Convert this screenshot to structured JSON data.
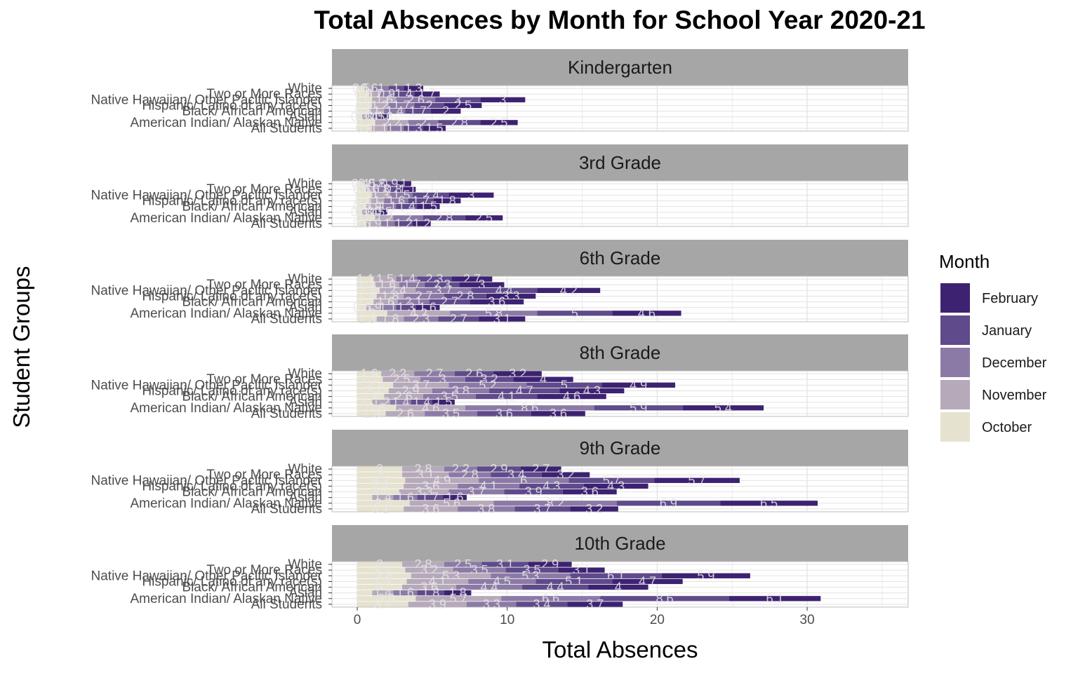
{
  "chart_data": {
    "type": "bar",
    "orientation": "horizontal",
    "stacked": true,
    "title": "Total Absences by Month for School Year 2020-21",
    "xlabel": "Total Absences",
    "ylabel": "Student Groups",
    "xlim": [
      0,
      35
    ],
    "x_ticks": [
      0,
      10,
      20,
      30
    ],
    "grid": true,
    "legend": {
      "title": "Month",
      "position": "right"
    },
    "categories": [
      "White",
      "Two or More Races",
      "Native Hawaiian/ Other Pacific Islander",
      "Hispanic/ Latino of any race(s)",
      "Black/ African American",
      "Asian",
      "American Indian/ Alaskan Native",
      "All Students"
    ],
    "series_order": [
      "October",
      "November",
      "December",
      "January",
      "February"
    ],
    "colors": {
      "February": "#3d2272",
      "January": "#5f4a8b",
      "December": "#8c7aa6",
      "November": "#b6a9ba",
      "October": "#e6e2d0"
    },
    "panels": [
      {
        "name": "Kindergarten",
        "values": [
          [
            0.5,
            0.6,
            1.0,
            1.0,
            1.3
          ],
          [
            0.8,
            0.7,
            0.9,
            1.4,
            1.7
          ],
          [
            1.0,
            1.6,
            2.6,
            3.0,
            3.0
          ],
          [
            0.9,
            1.2,
            1.7,
            2.0,
            2.5
          ],
          [
            0.8,
            1.0,
            1.4,
            1.7,
            2.0
          ],
          [
            0.3,
            0.3,
            0.4,
            0.5,
            0.6
          ],
          [
            1.2,
            2.2,
            2.0,
            2.8,
            2.5
          ],
          [
            0.9,
            1.1,
            1.1,
            1.3,
            1.5
          ]
        ]
      },
      {
        "name": "3rd Grade",
        "values": [
          [
            0.4,
            0.5,
            0.8,
            0.9,
            1.0
          ],
          [
            0.6,
            0.6,
            0.8,
            0.8,
            1.1
          ],
          [
            0.9,
            1.3,
            1.5,
            2.4,
            3.0
          ],
          [
            0.8,
            1.0,
            1.6,
            1.7,
            1.8
          ],
          [
            0.6,
            0.9,
            1.1,
            1.4,
            1.5
          ],
          [
            0.3,
            0.3,
            0.4,
            0.5,
            0.5
          ],
          [
            1.2,
            1.2,
            2.0,
            2.8,
            2.5
          ],
          [
            0.6,
            0.9,
            1.0,
            1.2,
            1.2
          ]
        ]
      },
      {
        "name": "6th Grade",
        "values": [
          [
            1.1,
            1.5,
            1.4,
            2.3,
            2.7
          ],
          [
            1.2,
            1.6,
            1.7,
            2.3,
            3.0
          ],
          [
            1.5,
            2.4,
            3.7,
            4.4,
            4.2
          ],
          [
            1.3,
            1.8,
            2.7,
            2.8,
            3.3
          ],
          [
            1.1,
            1.6,
            2.1,
            2.7,
            3.6
          ],
          [
            0.6,
            0.9,
            1.1,
            1.3,
            1.6
          ],
          [
            2.0,
            4.2,
            5.8,
            5.0,
            4.6
          ],
          [
            1.3,
            1.8,
            2.3,
            2.7,
            3.1
          ]
        ]
      },
      {
        "name": "8th Grade",
        "values": [
          [
            1.6,
            2.2,
            2.7,
            2.6,
            3.2
          ],
          [
            1.7,
            2.5,
            3.0,
            3.2,
            4.0
          ],
          [
            2.4,
            3.7,
            5.2,
            5.0,
            4.9
          ],
          [
            2.1,
            2.9,
            3.8,
            4.7,
            4.3
          ],
          [
            1.8,
            2.6,
            3.5,
            4.1,
            4.6
          ],
          [
            1.0,
            1.2,
            1.4,
            1.4,
            1.5
          ],
          [
            2.6,
            4.6,
            8.6,
            5.9,
            5.4
          ],
          [
            1.9,
            2.6,
            3.5,
            3.6,
            3.6
          ]
        ]
      },
      {
        "name": "9th Grade",
        "values": [
          [
            3.0,
            2.8,
            2.2,
            2.9,
            2.7
          ],
          [
            3.0,
            3.1,
            2.8,
            3.4,
            3.2
          ],
          [
            3.2,
            4.9,
            6.0,
            5.7,
            5.7
          ],
          [
            3.1,
            3.6,
            4.1,
            4.3,
            4.3
          ],
          [
            2.8,
            3.3,
            3.7,
            3.9,
            3.6
          ],
          [
            1.0,
            1.4,
            1.6,
            1.7,
            1.6
          ],
          [
            3.5,
            5.6,
            8.2,
            6.9,
            6.5
          ],
          [
            3.1,
            3.6,
            3.8,
            3.7,
            3.2
          ]
        ]
      },
      {
        "name": "10th Grade",
        "values": [
          [
            3.0,
            2.8,
            2.5,
            3.1,
            2.9
          ],
          [
            3.2,
            3.2,
            3.5,
            3.5,
            3.1
          ],
          [
            3.6,
            5.3,
            5.3,
            6.1,
            5.9
          ],
          [
            3.3,
            4.1,
            4.5,
            5.1,
            4.7
          ],
          [
            3.0,
            3.6,
            4.4,
            4.4,
            4.0
          ],
          [
            1.0,
            1.4,
            1.6,
            1.8,
            1.8
          ],
          [
            3.9,
            5.7,
            6.6,
            8.6,
            6.1
          ],
          [
            3.4,
            3.9,
            3.3,
            3.4,
            3.7
          ]
        ]
      }
    ]
  }
}
